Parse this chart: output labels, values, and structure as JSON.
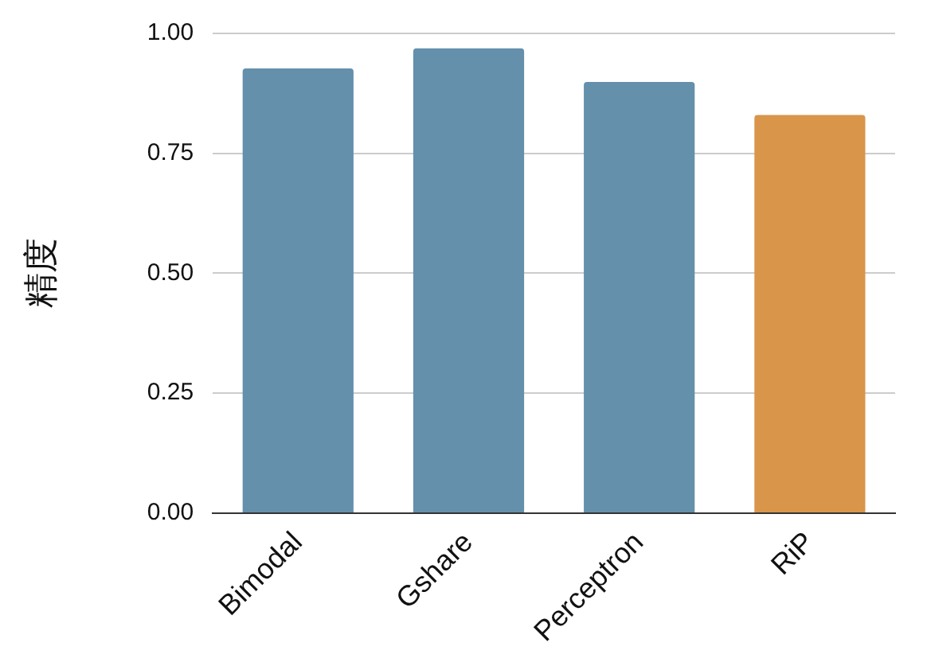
{
  "chart_data": {
    "type": "bar",
    "ylabel": "精度",
    "categories": [
      "Bimodal",
      "Gshare",
      "Perceptron",
      "RiP"
    ],
    "values": [
      0.927,
      0.969,
      0.899,
      0.83
    ],
    "colors": [
      "#6490ab",
      "#6490ab",
      "#6490ab",
      "#d9954a"
    ],
    "ylim": [
      0,
      1
    ],
    "yticks": [
      {
        "value": 0,
        "label": "0.00"
      },
      {
        "value": 0.25,
        "label": "0.25"
      },
      {
        "value": 0.5,
        "label": "0.50"
      },
      {
        "value": 0.75,
        "label": "0.75"
      },
      {
        "value": 1,
        "label": "1.00"
      }
    ],
    "grid": "y"
  }
}
